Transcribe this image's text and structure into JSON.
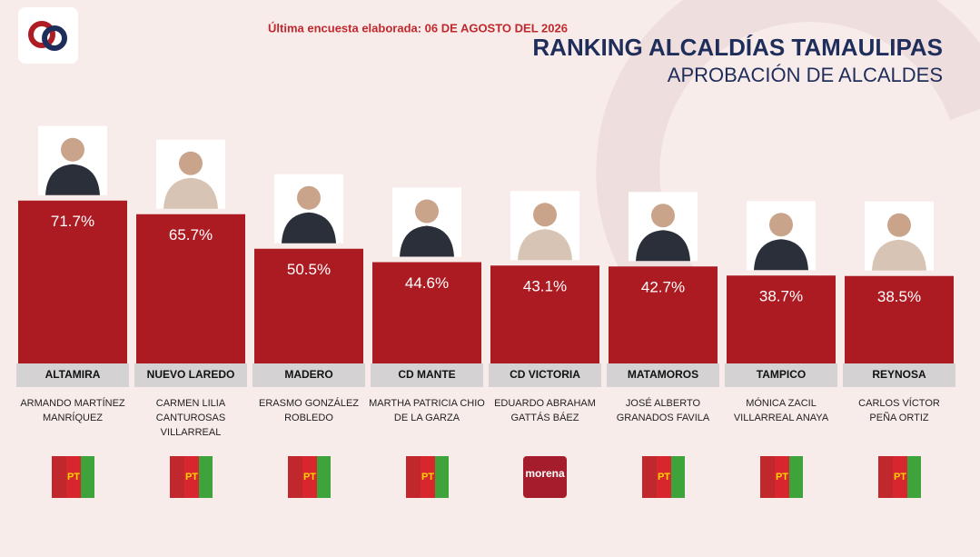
{
  "chart_data": {
    "type": "bar",
    "update_note": "Última encuesta elaborada: 06 DE AGOSTO DEL 2026",
    "title": "RANKING ALCALDÍAS TAMAULIPAS",
    "subtitle": "APROBACIÓN DE ALCALDES",
    "categories": [
      "ALTAMIRA",
      "NUEVO LAREDO",
      "MADERO",
      "CD MANTE",
      "CD VICTORIA",
      "MATAMOROS",
      "TAMPICO",
      "REYNOSA"
    ],
    "values": [
      71.7,
      65.7,
      50.5,
      44.6,
      43.1,
      42.7,
      38.7,
      38.5
    ],
    "value_labels": [
      "71.7%",
      "65.7%",
      "50.5%",
      "44.6%",
      "43.1%",
      "42.7%",
      "38.7%",
      "38.5%"
    ],
    "color": "#ac1b22",
    "mayors": [
      [
        "ARMANDO MARTÍNEZ",
        "MANRÍQUEZ"
      ],
      [
        "CARMEN LILIA",
        "CANTUROSAS",
        "VILLARREAL"
      ],
      [
        "ERASMO GONZÁLEZ",
        "ROBLEDO"
      ],
      [
        "MARTHA PATRICIA CHIO",
        "DE LA GARZA"
      ],
      [
        "EDUARDO ABRAHAM",
        "GATTÁS BÁEZ"
      ],
      [
        "JOSÉ ALBERTO",
        "GRANADOS FAVILA"
      ],
      [
        "MÓNICA ZACIL",
        "VILLARREAL ANAYA"
      ],
      [
        "CARLOS VÍCTOR",
        "PEÑA ORTIZ"
      ]
    ],
    "party_logo_texts": [
      "PT",
      "PT",
      "PT",
      "PT",
      "morena",
      "PT",
      "PT",
      "PT"
    ]
  }
}
